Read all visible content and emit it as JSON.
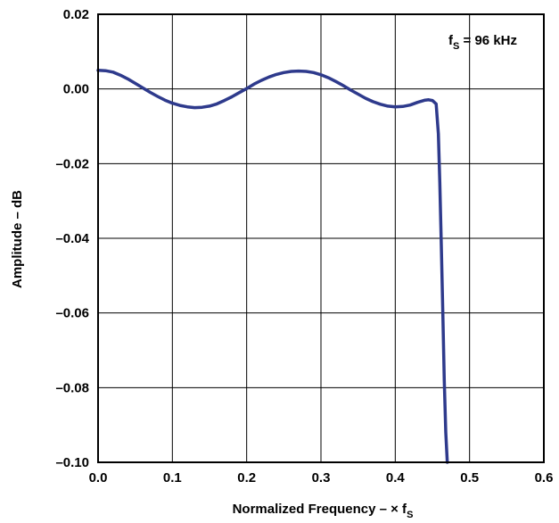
{
  "chart_data": {
    "type": "line",
    "title": "",
    "xlabel": "Normalized Frequency – × f",
    "xlabel_sub": "S",
    "ylabel": "Amplitude – dB",
    "xlim": [
      0.0,
      0.6
    ],
    "ylim": [
      -0.1,
      0.02
    ],
    "grid": true,
    "x_ticks": [
      0.0,
      0.1,
      0.2,
      0.3,
      0.4,
      0.5,
      0.6
    ],
    "x_tick_labels": [
      "0.0",
      "0.1",
      "0.2",
      "0.3",
      "0.4",
      "0.5",
      "0.6"
    ],
    "y_ticks": [
      0.02,
      0.0,
      -0.02,
      -0.04,
      -0.06,
      -0.08,
      -0.1
    ],
    "y_tick_labels": [
      "0.02",
      "0.00",
      "–0.02",
      "–0.04",
      "–0.06",
      "–0.08",
      "–0.10"
    ],
    "annotation": {
      "prefix": "f",
      "sub": "S",
      "suffix": " = 96 kHz"
    },
    "series": [
      {
        "color": "#2e3a8c",
        "x": [
          0.0,
          0.01,
          0.02,
          0.03,
          0.04,
          0.05,
          0.06,
          0.07,
          0.08,
          0.09,
          0.1,
          0.11,
          0.12,
          0.13,
          0.14,
          0.15,
          0.16,
          0.17,
          0.18,
          0.19,
          0.2,
          0.21,
          0.22,
          0.23,
          0.24,
          0.25,
          0.26,
          0.27,
          0.28,
          0.29,
          0.3,
          0.31,
          0.32,
          0.33,
          0.34,
          0.35,
          0.36,
          0.37,
          0.38,
          0.39,
          0.4,
          0.41,
          0.42,
          0.43,
          0.44,
          0.445,
          0.45,
          0.455,
          0.458,
          0.46,
          0.462,
          0.464,
          0.466,
          0.468,
          0.47
        ],
        "y": [
          0.005,
          0.0049,
          0.0045,
          0.0037,
          0.0027,
          0.0015,
          0.0003,
          -0.0009,
          -0.002,
          -0.003,
          -0.0038,
          -0.0044,
          -0.0048,
          -0.005,
          -0.0049,
          -0.0046,
          -0.004,
          -0.0031,
          -0.0021,
          -0.001,
          0.0001,
          0.0013,
          0.0023,
          0.0032,
          0.0039,
          0.0044,
          0.0047,
          0.0048,
          0.0047,
          0.0044,
          0.0038,
          0.003,
          0.002,
          0.0009,
          -0.0003,
          -0.0014,
          -0.0025,
          -0.0034,
          -0.0041,
          -0.0046,
          -0.0048,
          -0.0047,
          -0.0043,
          -0.0036,
          -0.003,
          -0.0029,
          -0.0031,
          -0.004,
          -0.012,
          -0.025,
          -0.042,
          -0.06,
          -0.078,
          -0.092,
          -0.1
        ]
      }
    ]
  }
}
